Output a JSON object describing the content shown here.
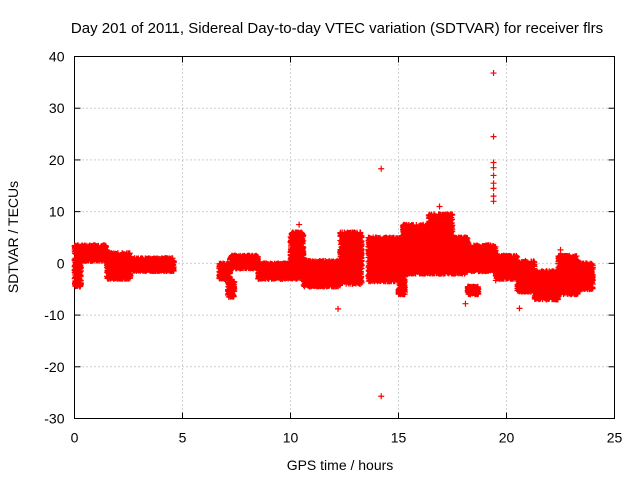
{
  "chart_data": {
    "type": "scatter",
    "title": "Day 201 of 2011, Sidereal Day-to-day VTEC variation (SDTVAR) for receiver flrs",
    "xlabel": "GPS time / hours",
    "ylabel": "SDTVAR / TECUs",
    "xlim": [
      0,
      25
    ],
    "ylim": [
      -30,
      40
    ],
    "xticks": [
      "0",
      "5",
      "10",
      "15",
      "20",
      "25"
    ],
    "yticks": [
      "-30",
      "-20",
      "-10",
      "0",
      "10",
      "20",
      "30",
      "40"
    ],
    "grid": true,
    "marker": "+",
    "color": "#ff0000",
    "series": [
      {
        "name": "SDTVAR",
        "bands": [
          {
            "x0": 0.0,
            "x1": 0.3,
            "lo": -4.5,
            "hi": 3.5
          },
          {
            "x0": 0.3,
            "x1": 1.5,
            "lo": 0.5,
            "hi": 3.5
          },
          {
            "x0": 1.5,
            "x1": 2.6,
            "lo": -3.0,
            "hi": 2.0
          },
          {
            "x0": 2.7,
            "x1": 3.7,
            "lo": -1.5,
            "hi": 1.0
          },
          {
            "x0": 3.7,
            "x1": 4.6,
            "lo": -1.5,
            "hi": 1.0
          },
          {
            "x0": 6.7,
            "x1": 7.2,
            "lo": -3.0,
            "hi": 0.0
          },
          {
            "x0": 7.1,
            "x1": 7.4,
            "lo": -6.5,
            "hi": -3.5
          },
          {
            "x0": 7.2,
            "x1": 8.5,
            "lo": -1.0,
            "hi": 1.5
          },
          {
            "x0": 8.5,
            "x1": 10.0,
            "lo": -3.0,
            "hi": 0.0
          },
          {
            "x0": 10.0,
            "x1": 10.6,
            "lo": -3.0,
            "hi": 6.0
          },
          {
            "x0": 10.6,
            "x1": 12.3,
            "lo": -4.5,
            "hi": 0.5
          },
          {
            "x0": 12.3,
            "x1": 13.3,
            "lo": -4.0,
            "hi": 6.0
          },
          {
            "x0": 13.6,
            "x1": 15.2,
            "lo": -3.5,
            "hi": 5.0
          },
          {
            "x0": 15.0,
            "x1": 15.3,
            "lo": -6.0,
            "hi": -2.0
          },
          {
            "x0": 15.2,
            "x1": 16.4,
            "lo": -1.0,
            "hi": 7.5
          },
          {
            "x0": 16.4,
            "x1": 17.5,
            "lo": 0.0,
            "hi": 9.5
          },
          {
            "x0": 17.5,
            "x1": 18.2,
            "lo": 1.0,
            "hi": 5.0
          },
          {
            "x0": 15.2,
            "x1": 18.2,
            "lo": -2.0,
            "hi": 2.0
          },
          {
            "x0": 18.2,
            "x1": 18.7,
            "lo": -6.0,
            "hi": -4.5
          },
          {
            "x0": 18.2,
            "x1": 19.5,
            "lo": -1.5,
            "hi": 3.5
          },
          {
            "x0": 19.5,
            "x1": 20.5,
            "lo": -3.0,
            "hi": 1.5
          },
          {
            "x0": 20.5,
            "x1": 21.3,
            "lo": -5.5,
            "hi": 0.5
          },
          {
            "x0": 21.3,
            "x1": 22.4,
            "lo": -7.0,
            "hi": -1.5
          },
          {
            "x0": 22.4,
            "x1": 23.3,
            "lo": -6.0,
            "hi": 1.5
          },
          {
            "x0": 23.3,
            "x1": 24.0,
            "lo": -5.0,
            "hi": 0.0
          }
        ],
        "outliers": [
          {
            "x": 10.4,
            "y": 7.5
          },
          {
            "x": 12.2,
            "y": -8.8
          },
          {
            "x": 14.2,
            "y": 18.3
          },
          {
            "x": 14.2,
            "y": -25.7
          },
          {
            "x": 14.2,
            "y": -1.0
          },
          {
            "x": 16.9,
            "y": 11.0
          },
          {
            "x": 18.1,
            "y": -7.8
          },
          {
            "x": 19.4,
            "y": 36.8
          },
          {
            "x": 19.4,
            "y": 24.5
          },
          {
            "x": 19.4,
            "y": 19.5
          },
          {
            "x": 19.4,
            "y": 18.5
          },
          {
            "x": 19.4,
            "y": 17.0
          },
          {
            "x": 19.4,
            "y": 15.5
          },
          {
            "x": 19.4,
            "y": 14.5
          },
          {
            "x": 19.4,
            "y": 13.0
          },
          {
            "x": 19.4,
            "y": 12.0
          },
          {
            "x": 19.5,
            "y": -3.3
          },
          {
            "x": 20.6,
            "y": -8.7
          },
          {
            "x": 22.5,
            "y": 2.6
          }
        ]
      }
    ]
  }
}
